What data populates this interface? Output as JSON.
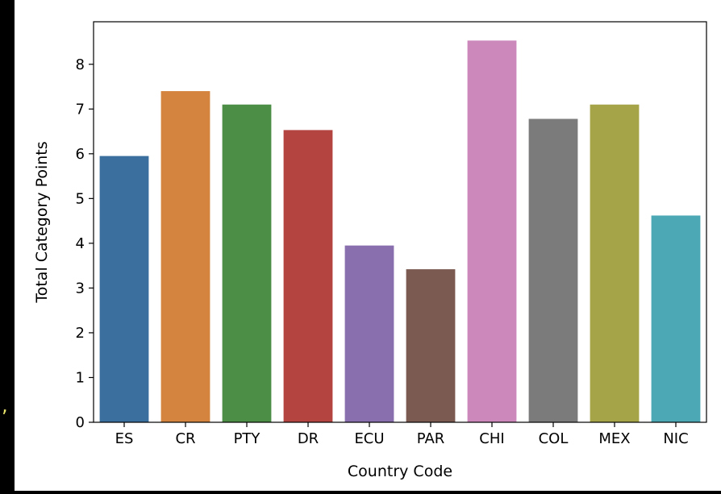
{
  "side_fragment": ",",
  "chart_data": {
    "type": "bar",
    "title": "",
    "xlabel": "Country Code",
    "ylabel": "Total Category Points",
    "categories": [
      "ES",
      "CR",
      "PTY",
      "DR",
      "ECU",
      "PAR",
      "CHI",
      "COL",
      "MEX",
      "NIC"
    ],
    "values": [
      5.95,
      7.4,
      7.1,
      6.53,
      3.95,
      3.42,
      8.53,
      6.78,
      7.1,
      4.62
    ],
    "colors": [
      "#3a6f9e",
      "#d4843e",
      "#4c8e45",
      "#b34440",
      "#8a6fae",
      "#7b5a52",
      "#cc88bb",
      "#7b7b7b",
      "#a6a448",
      "#4da8b6"
    ],
    "ylim": [
      0,
      8.95
    ],
    "yticks": [
      0,
      1,
      2,
      3,
      4,
      5,
      6,
      7,
      8
    ],
    "grid": false,
    "legend": "none"
  }
}
